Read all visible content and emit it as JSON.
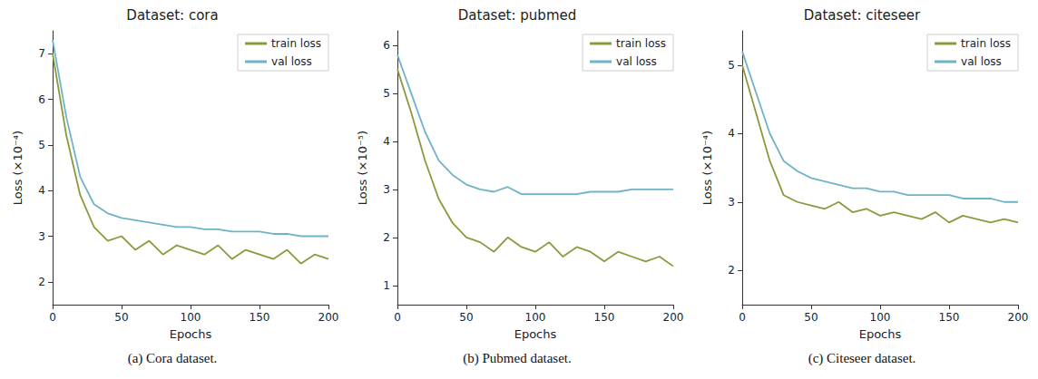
{
  "chart_data": [
    {
      "type": "line",
      "title": "Dataset: cora",
      "caption": "(a) Cora dataset.",
      "x_label": "Epochs",
      "y_label": "Loss (×10⁻⁴)",
      "x": [
        0,
        10,
        20,
        30,
        40,
        50,
        60,
        70,
        80,
        90,
        100,
        110,
        120,
        130,
        140,
        150,
        160,
        170,
        180,
        190,
        200
      ],
      "xlim": [
        0,
        200
      ],
      "xticks": [
        0,
        50,
        100,
        150,
        200
      ],
      "ylim": [
        1.5,
        7.5
      ],
      "yticks": [
        2,
        3,
        4,
        5,
        6,
        7
      ],
      "grid": false,
      "legend": "upper right",
      "series": [
        {
          "name": "train loss",
          "color": "#8a9a3c",
          "values": [
            7.0,
            5.2,
            3.9,
            3.2,
            2.9,
            3.0,
            2.7,
            2.9,
            2.6,
            2.8,
            2.7,
            2.6,
            2.8,
            2.5,
            2.7,
            2.6,
            2.5,
            2.7,
            2.4,
            2.6,
            2.5
          ]
        },
        {
          "name": "val loss",
          "color": "#6fb3c8",
          "values": [
            7.3,
            5.6,
            4.3,
            3.7,
            3.5,
            3.4,
            3.35,
            3.3,
            3.25,
            3.2,
            3.2,
            3.15,
            3.15,
            3.1,
            3.1,
            3.1,
            3.05,
            3.05,
            3.0,
            3.0,
            3.0
          ]
        }
      ]
    },
    {
      "type": "line",
      "title": "Dataset: pubmed",
      "caption": "(b) Pubmed dataset.",
      "x_label": "Epochs",
      "y_label": "Loss (×10⁻⁵)",
      "x": [
        0,
        10,
        20,
        30,
        40,
        50,
        60,
        70,
        80,
        90,
        100,
        110,
        120,
        130,
        140,
        150,
        160,
        170,
        180,
        190,
        200
      ],
      "xlim": [
        0,
        200
      ],
      "xticks": [
        0,
        50,
        100,
        150,
        200
      ],
      "ylim": [
        0.6,
        6.3
      ],
      "yticks": [
        1,
        2,
        3,
        4,
        5,
        6
      ],
      "grid": false,
      "legend": "upper right",
      "series": [
        {
          "name": "train loss",
          "color": "#8a9a3c",
          "values": [
            5.5,
            4.6,
            3.6,
            2.8,
            2.3,
            2.0,
            1.9,
            1.7,
            2.0,
            1.8,
            1.7,
            1.9,
            1.6,
            1.8,
            1.7,
            1.5,
            1.7,
            1.6,
            1.5,
            1.6,
            1.4
          ]
        },
        {
          "name": "val loss",
          "color": "#6fb3c8",
          "values": [
            5.8,
            5.0,
            4.2,
            3.6,
            3.3,
            3.1,
            3.0,
            2.95,
            3.05,
            2.9,
            2.9,
            2.9,
            2.9,
            2.9,
            2.95,
            2.95,
            2.95,
            3.0,
            3.0,
            3.0,
            3.0
          ]
        }
      ]
    },
    {
      "type": "line",
      "title": "Dataset: citeseer",
      "caption": "(c) Citeseer dataset.",
      "x_label": "Epochs",
      "y_label": "Loss (×10⁻⁴)",
      "x": [
        0,
        10,
        20,
        30,
        40,
        50,
        60,
        70,
        80,
        90,
        100,
        110,
        120,
        130,
        140,
        150,
        160,
        170,
        180,
        190,
        200
      ],
      "xlim": [
        0,
        200
      ],
      "xticks": [
        0,
        50,
        100,
        150,
        200
      ],
      "ylim": [
        1.5,
        5.5
      ],
      "yticks": [
        2,
        3,
        4,
        5
      ],
      "grid": false,
      "legend": "upper right",
      "series": [
        {
          "name": "train loss",
          "color": "#8a9a3c",
          "values": [
            5.0,
            4.3,
            3.6,
            3.1,
            3.0,
            2.95,
            2.9,
            3.0,
            2.85,
            2.9,
            2.8,
            2.85,
            2.8,
            2.75,
            2.85,
            2.7,
            2.8,
            2.75,
            2.7,
            2.75,
            2.7
          ]
        },
        {
          "name": "val loss",
          "color": "#6fb3c8",
          "values": [
            5.2,
            4.6,
            4.0,
            3.6,
            3.45,
            3.35,
            3.3,
            3.25,
            3.2,
            3.2,
            3.15,
            3.15,
            3.1,
            3.1,
            3.1,
            3.1,
            3.05,
            3.05,
            3.05,
            3.0,
            3.0
          ]
        }
      ]
    }
  ]
}
